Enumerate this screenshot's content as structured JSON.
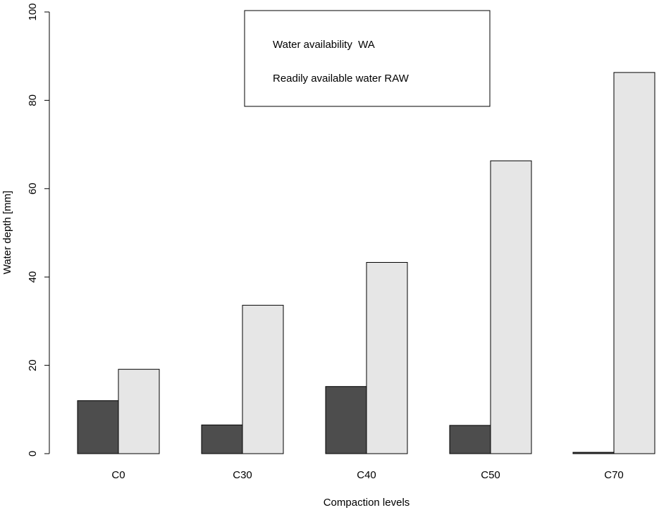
{
  "chart_data": {
    "type": "bar",
    "categories": [
      "C0",
      "C30",
      "C40",
      "C50",
      "C70"
    ],
    "series": [
      {
        "name": "Water availability  WA",
        "values": [
          12,
          6.5,
          15.2,
          6.4,
          0.3
        ],
        "color": "#4d4d4d"
      },
      {
        "name": "Readily available water RAW",
        "values": [
          19.1,
          33.6,
          43.3,
          66.3,
          86.3
        ],
        "color": "#e6e6e6"
      }
    ],
    "xlabel": "Compaction levels",
    "ylabel": "Water depth [mm]",
    "ylim": [
      0,
      100
    ],
    "yticks": [
      0,
      20,
      40,
      60,
      80,
      100
    ],
    "legend_position": "top-center",
    "grid": false
  }
}
